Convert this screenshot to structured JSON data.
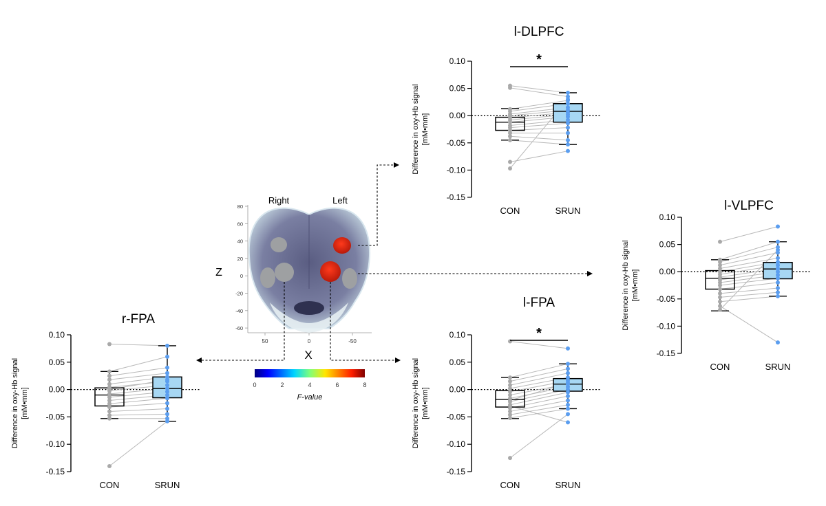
{
  "figure": {
    "brain": {
      "label_right": "Right",
      "label_left": "Left",
      "z_label": "Z",
      "x_label": "X",
      "z_ticks": [
        "80",
        "60",
        "40",
        "20",
        "0",
        "-20",
        "-40",
        "-60"
      ],
      "x_ticks": [
        "50",
        "0",
        "-50"
      ],
      "colorbar_ticks": [
        "0",
        "2",
        "4",
        "6",
        "8"
      ],
      "colorbar_label": "F-value",
      "colors": {
        "highlight": "#d9230f",
        "inactive": "#9ea0a2",
        "head": "#6c6f8e"
      }
    },
    "colors": {
      "con_point": "#a9a9a9",
      "srun_point": "#5b9ef0",
      "srun_fill": "#a7d7f3",
      "pair_line": "#b8b8b8"
    }
  },
  "chart_data": [
    {
      "type": "box",
      "title": "l-DLPFC",
      "ylabel": "Difference in oxy-Hb signal",
      "ylabel_unit": "[mM•mm]",
      "categories": [
        "CON",
        "SRUN"
      ],
      "ylim": [
        -0.15,
        0.1
      ],
      "yticks": [
        0.1,
        0.05,
        0.0,
        -0.05,
        -0.1,
        -0.15
      ],
      "ytick_labels": [
        "0.10",
        "0.05",
        "0.00",
        "-0.05",
        "-0.10",
        "-0.15"
      ],
      "significance": "*",
      "box": [
        {
          "min": -0.045,
          "q1": -0.027,
          "median": -0.012,
          "q3": -0.003,
          "max": 0.013
        },
        {
          "min": -0.053,
          "q1": -0.012,
          "median": 0.008,
          "q3": 0.022,
          "max": 0.042
        }
      ],
      "series": [
        {
          "values": [
            0.055,
            0.051,
            0.012,
            0.008,
            0.003,
            0.0,
            -0.004,
            -0.008,
            -0.012,
            -0.018,
            -0.022,
            -0.027,
            -0.032,
            -0.038,
            -0.045,
            -0.085,
            -0.097
          ]
        },
        {
          "values": [
            0.042,
            0.035,
            0.028,
            0.022,
            0.015,
            0.01,
            0.006,
            0.002,
            -0.002,
            -0.008,
            -0.014,
            -0.022,
            -0.032,
            -0.045,
            -0.053,
            -0.065,
            0.03
          ]
        }
      ]
    },
    {
      "type": "box",
      "title": "l-VLPFC",
      "ylabel": "Difference in oxy-Hb signal",
      "ylabel_unit": "[mM•mm]",
      "categories": [
        "CON",
        "SRUN"
      ],
      "ylim": [
        -0.15,
        0.1
      ],
      "yticks": [
        0.1,
        0.05,
        0.0,
        -0.05,
        -0.1,
        -0.15
      ],
      "ytick_labels": [
        "0.10",
        "0.05",
        "0.00",
        "-0.05",
        "-0.10",
        "-0.15"
      ],
      "significance": "",
      "box": [
        {
          "min": -0.072,
          "q1": -0.032,
          "median": -0.012,
          "q3": 0.002,
          "max": 0.022
        },
        {
          "min": -0.045,
          "q1": -0.013,
          "median": 0.005,
          "q3": 0.017,
          "max": 0.055
        }
      ],
      "series": [
        {
          "values": [
            0.055,
            0.022,
            0.018,
            0.012,
            0.006,
            0.0,
            -0.005,
            -0.01,
            -0.015,
            -0.02,
            -0.025,
            -0.032,
            -0.04,
            -0.047,
            -0.055,
            -0.063,
            -0.07
          ]
        },
        {
          "values": [
            0.083,
            0.055,
            0.045,
            0.035,
            0.025,
            0.018,
            0.012,
            0.006,
            0.0,
            -0.006,
            -0.012,
            -0.02,
            -0.03,
            -0.038,
            -0.045,
            -0.13,
            0.04
          ]
        }
      ]
    },
    {
      "type": "box",
      "title": "r-FPA",
      "ylabel": "Difference in oxy-Hb signal",
      "ylabel_unit": "[mM•mm]",
      "categories": [
        "CON",
        "SRUN"
      ],
      "ylim": [
        -0.15,
        0.1
      ],
      "yticks": [
        0.1,
        0.05,
        0.0,
        -0.05,
        -0.1,
        -0.15
      ],
      "ytick_labels": [
        "0.10",
        "0.05",
        "0.00",
        "-0.05",
        "-0.10",
        "-0.15"
      ],
      "significance": "",
      "box": [
        {
          "min": -0.053,
          "q1": -0.03,
          "median": -0.01,
          "q3": 0.003,
          "max": 0.033
        },
        {
          "min": -0.058,
          "q1": -0.015,
          "median": 0.002,
          "q3": 0.023,
          "max": 0.08
        }
      ],
      "series": [
        {
          "values": [
            0.083,
            0.033,
            0.025,
            0.018,
            0.01,
            0.004,
            -0.002,
            -0.008,
            -0.014,
            -0.02,
            -0.026,
            -0.032,
            -0.04,
            -0.047,
            -0.053,
            -0.14,
            0.0
          ]
        },
        {
          "values": [
            0.08,
            0.06,
            0.04,
            0.03,
            0.023,
            0.015,
            0.008,
            0.002,
            -0.004,
            -0.01,
            -0.016,
            -0.025,
            -0.035,
            -0.045,
            -0.053,
            -0.058,
            0.018
          ]
        }
      ]
    },
    {
      "type": "box",
      "title": "l-FPA",
      "ylabel": "Difference in oxy-Hb signal",
      "ylabel_unit": "[mM•mm]",
      "categories": [
        "CON",
        "SRUN"
      ],
      "ylim": [
        -0.15,
        0.1
      ],
      "yticks": [
        0.1,
        0.05,
        0.0,
        -0.05,
        -0.1,
        -0.15
      ],
      "ytick_labels": [
        "0.10",
        "0.05",
        "0.00",
        "-0.05",
        "-0.10",
        "-0.15"
      ],
      "significance": "*",
      "box": [
        {
          "min": -0.053,
          "q1": -0.032,
          "median": -0.018,
          "q3": -0.002,
          "max": 0.022
        },
        {
          "min": -0.035,
          "q1": -0.003,
          "median": 0.01,
          "q3": 0.02,
          "max": 0.047
        }
      ],
      "series": [
        {
          "values": [
            0.088,
            0.022,
            0.015,
            0.008,
            0.002,
            -0.004,
            -0.01,
            -0.016,
            -0.022,
            -0.028,
            -0.034,
            -0.04,
            -0.046,
            -0.052,
            -0.125,
            -0.03,
            -0.02
          ]
        },
        {
          "values": [
            0.075,
            0.047,
            0.038,
            0.03,
            0.022,
            0.016,
            0.01,
            0.005,
            0.0,
            -0.005,
            -0.012,
            -0.02,
            -0.028,
            -0.035,
            -0.045,
            -0.06,
            0.012
          ]
        }
      ]
    }
  ]
}
